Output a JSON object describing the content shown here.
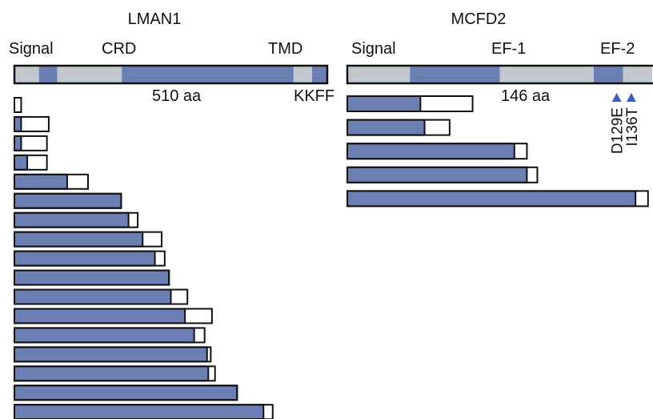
{
  "colors": {
    "protein": "#6b7fb3",
    "domain_grey": "#c3c7ce",
    "stroke": "#111111",
    "marker": "#3f5fbf"
  },
  "lman1": {
    "title": "LMAN1",
    "domain_labels": [
      "Signal",
      "CRD",
      "TMD"
    ],
    "length_label": "510 aa",
    "motif_label": "KKFF",
    "length_aa": 510,
    "segments": [
      {
        "type": "grey",
        "start": 0,
        "end": 40
      },
      {
        "type": "blue",
        "start": 40,
        "end": 70
      },
      {
        "type": "grey",
        "start": 70,
        "end": 175
      },
      {
        "type": "blue",
        "start": 175,
        "end": 455
      },
      {
        "type": "grey",
        "start": 455,
        "end": 485
      },
      {
        "type": "blue",
        "start": 485,
        "end": 510
      }
    ],
    "fragments": [
      {
        "blue": 0,
        "white": 11
      },
      {
        "blue": 11,
        "white": 56
      },
      {
        "blue": 11,
        "white": 53
      },
      {
        "blue": 21,
        "white": 53
      },
      {
        "blue": 86,
        "white": 120
      },
      {
        "blue": 174,
        "white": 174
      },
      {
        "blue": 186,
        "white": 201
      },
      {
        "blue": 209,
        "white": 240
      },
      {
        "blue": 229,
        "white": 245
      },
      {
        "blue": 252,
        "white": 252
      },
      {
        "blue": 255,
        "white": 282
      },
      {
        "blue": 278,
        "white": 322
      },
      {
        "blue": 293,
        "white": 310
      },
      {
        "blue": 314,
        "white": 320
      },
      {
        "blue": 316,
        "white": 327
      },
      {
        "blue": 363,
        "white": 363
      },
      {
        "blue": 406,
        "white": 421
      }
    ]
  },
  "mcfd2": {
    "title": "MCFD2",
    "domain_labels": [
      "Signal",
      "EF-1",
      "EF-2"
    ],
    "length_label": "146 aa",
    "length_aa": 146,
    "segments": [
      {
        "type": "grey",
        "start": 0,
        "end": 30
      },
      {
        "type": "blue",
        "start": 30,
        "end": 73
      },
      {
        "type": "grey",
        "start": 73,
        "end": 118
      },
      {
        "type": "blue",
        "start": 118,
        "end": 132
      },
      {
        "type": "grey",
        "start": 132,
        "end": 146
      }
    ],
    "mutations": [
      {
        "label": "D129E",
        "position": 129
      },
      {
        "label": "I136T",
        "position": 136
      }
    ],
    "fragments": [
      {
        "blue": 35,
        "white": 60
      },
      {
        "blue": 37,
        "white": 49
      },
      {
        "blue": 80,
        "white": 86
      },
      {
        "blue": 86,
        "white": 91
      },
      {
        "blue": 138,
        "white": 144
      }
    ]
  }
}
